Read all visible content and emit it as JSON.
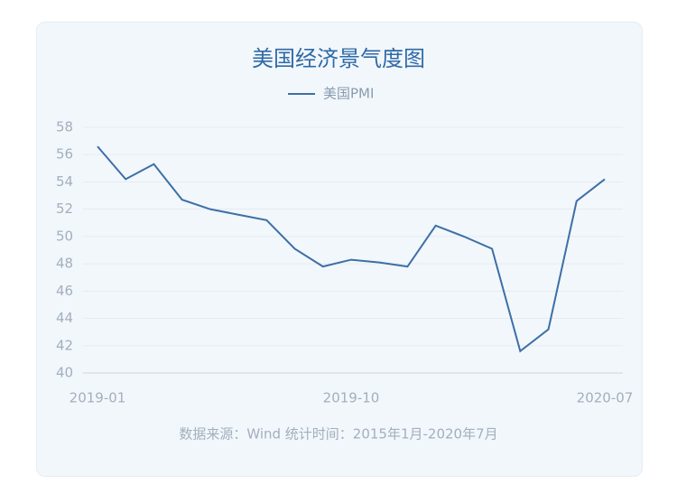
{
  "chart_data": {
    "type": "line",
    "title": "美国经济景气度图",
    "categories": [
      "2019-01",
      null,
      null,
      null,
      null,
      null,
      null,
      null,
      null,
      "2019-10",
      null,
      null,
      null,
      null,
      null,
      null,
      null,
      null,
      "2020-07"
    ],
    "series": [
      {
        "name": "美国PMI",
        "color": "#3d6fa6",
        "values": [
          56.6,
          54.2,
          55.3,
          52.7,
          52.0,
          51.6,
          51.2,
          49.1,
          47.8,
          48.3,
          48.1,
          47.8,
          50.8,
          50.0,
          49.1,
          41.6,
          43.2,
          52.6,
          54.2
        ]
      }
    ],
    "ylim": [
      40,
      58
    ],
    "yticks": [
      40,
      42,
      44,
      46,
      48,
      50,
      52,
      54,
      56,
      58
    ],
    "grid": true,
    "legend": "top",
    "source": "数据来源：Wind  统计时间：2015年1月-2020年7月"
  }
}
